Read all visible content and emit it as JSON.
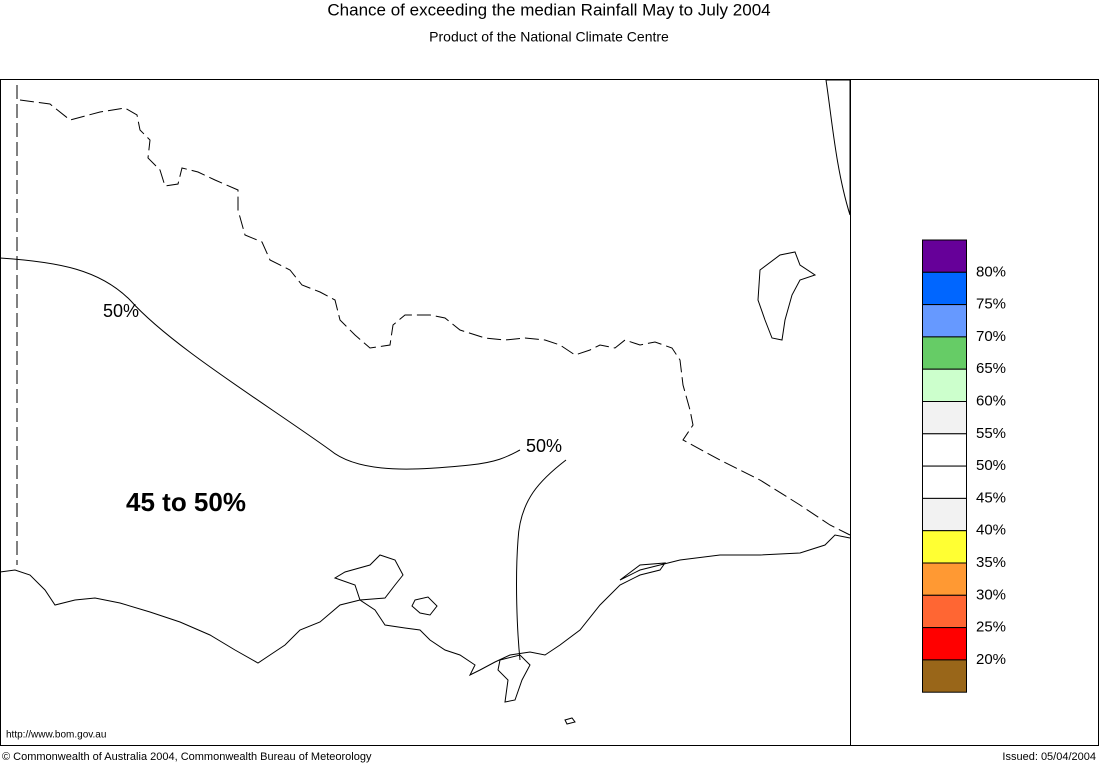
{
  "header": {
    "title": "Chance of exceeding the median Rainfall May to July 2004",
    "subtitle": "Product of the National Climate Centre"
  },
  "map": {
    "contour_labels": [
      "50%",
      "50%"
    ],
    "region_label": "45 to 50%"
  },
  "legend": {
    "colors": [
      "#660099",
      "#0066ff",
      "#6699ff",
      "#66cc66",
      "#ccffcc",
      "#f2f2f2",
      "#ffffff",
      "#ffffff",
      "#f2f2f2",
      "#ffff33",
      "#ff9933",
      "#ff6633",
      "#ff0000",
      "#996619"
    ],
    "labels": [
      "80%",
      "75%",
      "70%",
      "65%",
      "60%",
      "55%",
      "50%",
      "45%",
      "40%",
      "35%",
      "30%",
      "25%",
      "20%"
    ]
  },
  "footer": {
    "url": "http://www.bom.gov.au",
    "copyright": "© Commonwealth of Australia 2004, Commonwealth Bureau of Meteorology",
    "issued": "Issued: 05/04/2004"
  }
}
